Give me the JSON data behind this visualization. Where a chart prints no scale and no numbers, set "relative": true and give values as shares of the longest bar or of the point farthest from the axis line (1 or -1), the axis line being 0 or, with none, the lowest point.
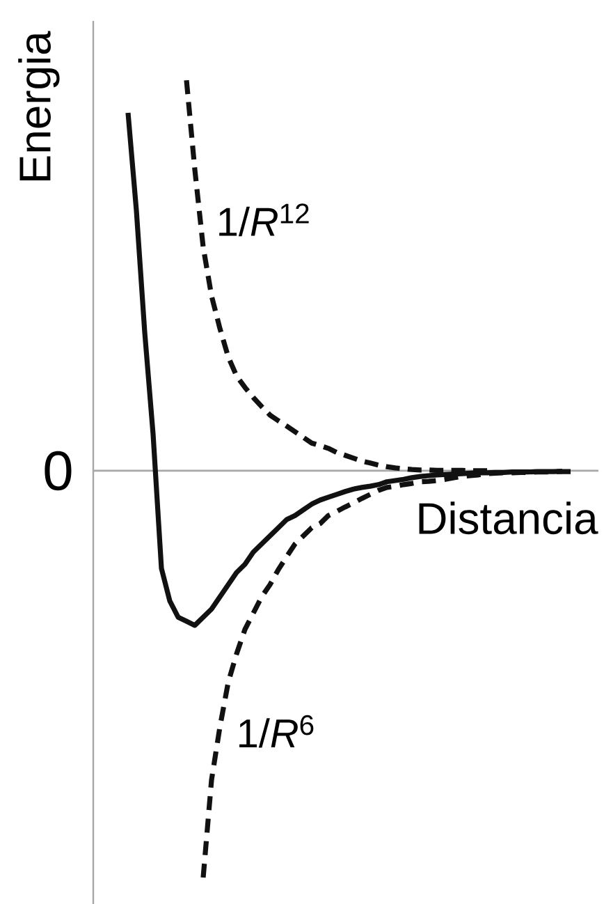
{
  "chart_data": {
    "type": "line",
    "xlabel": "Distancia",
    "ylabel": "Energia",
    "relative": true,
    "categories": [
      null,
      null,
      null,
      null,
      null,
      null,
      null,
      null,
      null,
      null,
      null,
      null,
      null,
      null,
      null,
      null,
      null,
      null,
      null,
      null,
      null,
      null,
      null,
      null,
      null,
      null,
      null,
      null,
      null,
      null,
      null,
      null,
      null,
      null,
      null,
      null,
      null,
      null,
      null,
      null,
      null,
      null,
      null,
      null,
      null,
      null,
      null,
      null,
      null,
      null,
      null,
      null,
      null,
      null,
      null,
      null,
      null,
      null
    ],
    "series": [
      {
        "color": "#111111",
        "line_style": "solid",
        "values": [
          null,
          null,
          null,
          null,
          0.88,
          0.64,
          0.34,
          0.09,
          -0.24,
          -0.32,
          -0.36,
          -0.37,
          -0.38,
          -0.36,
          -0.34,
          -0.31,
          -0.28,
          -0.25,
          -0.23,
          -0.2,
          -0.18,
          -0.16,
          -0.14,
          -0.12,
          -0.11,
          -0.096,
          -0.082,
          -0.072,
          -0.065,
          -0.058,
          -0.051,
          -0.045,
          -0.041,
          -0.038,
          -0.034,
          -0.027,
          -0.024,
          -0.021,
          -0.017,
          -0.014,
          -0.012,
          -0.01,
          -0.009,
          -0.008,
          -0.007,
          -0.006,
          -0.005,
          -0.005,
          -0.004,
          -0.004,
          -0.003,
          -0.003,
          -0.003,
          -0.002,
          -0.002,
          -0.002,
          -0.001,
          null
        ]
      },
      {
        "name": "1/*R*$^{12}$",
        "color": "#111111",
        "line_style": "dashed",
        "values": [
          null,
          null,
          null,
          null,
          null,
          null,
          null,
          null,
          null,
          null,
          null,
          0.96,
          0.74,
          0.55,
          0.43,
          0.35,
          0.28,
          0.233,
          0.205,
          0.18,
          0.158,
          0.137,
          0.123,
          0.11,
          0.096,
          0.082,
          0.068,
          0.062,
          0.055,
          0.045,
          0.038,
          0.031,
          0.024,
          0.019,
          0.014,
          0.01,
          0.007,
          0.005,
          0.003,
          0.002,
          0.002,
          0.001,
          0.001,
          0.001,
          0.001,
          0,
          0,
          0,
          null,
          null,
          null,
          null,
          null,
          null,
          null,
          null,
          null,
          null
        ]
      },
      {
        "name": "1/*R*$^{6}$",
        "color": "#111111",
        "line_style": "dashed",
        "values": [
          null,
          null,
          null,
          null,
          null,
          null,
          null,
          null,
          null,
          null,
          null,
          null,
          null,
          -1,
          -0.76,
          -0.63,
          -0.52,
          -0.45,
          -0.39,
          -0.35,
          -0.31,
          -0.28,
          -0.243,
          -0.211,
          -0.18,
          -0.16,
          -0.14,
          -0.13,
          -0.11,
          -0.1,
          -0.089,
          -0.079,
          -0.068,
          -0.058,
          -0.048,
          -0.041,
          -0.038,
          -0.034,
          -0.031,
          -0.027,
          -0.026,
          -0.024,
          -0.021,
          -0.017,
          -0.014,
          -0.012,
          -0.01,
          -0.007,
          -0.006,
          -0.005,
          -0.005,
          -0.004,
          -0.004,
          -0.003,
          -0.003,
          -0.002,
          -0.002,
          -0.002
        ]
      }
    ],
    "ref_lines": [
      {
        "axis": "y",
        "value": 0,
        "label": "0",
        "color": "#a8a8a8"
      }
    ]
  }
}
